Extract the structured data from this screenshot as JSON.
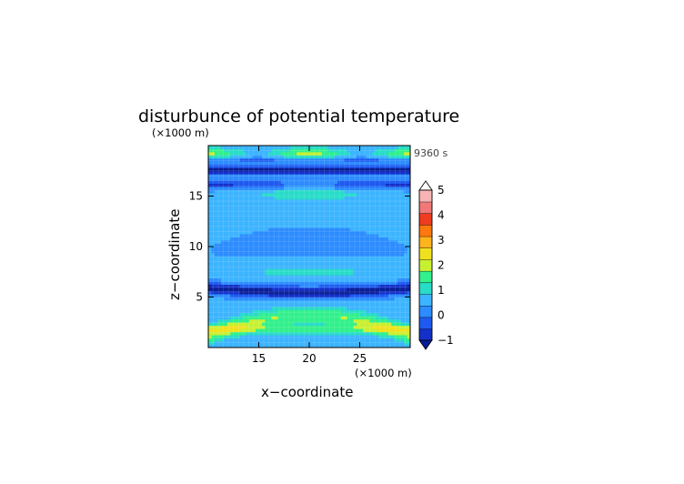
{
  "chart_data": {
    "type": "heatmap",
    "title": "disturbunce of potential temperature",
    "time_label": "9360 s",
    "xlabel": "x−coordinate",
    "ylabel": "z−coordinate",
    "x_unit": "(×1000 m)",
    "y_unit": "(×1000 m)",
    "xlim": [
      10,
      30
    ],
    "ylim": [
      0,
      20
    ],
    "x_ticks": [
      15,
      20,
      25
    ],
    "y_ticks": [
      5,
      10,
      15
    ],
    "grid": true,
    "colorbar": {
      "levels": [
        -1,
        -0.5,
        0,
        0.5,
        1,
        1.5,
        2,
        2.5,
        3,
        3.5,
        4,
        4.5,
        5
      ],
      "labels": [
        "−1",
        "0",
        "1",
        "2",
        "3",
        "4",
        "5"
      ],
      "colors": [
        "#1430c8",
        "#1e5af0",
        "#2d8cff",
        "#3cb4ff",
        "#28dcc8",
        "#32f08c",
        "#c8f032",
        "#f0e11e",
        "#ffb41e",
        "#ff780f",
        "#f03c1e",
        "#f07878",
        "#f8b4b4"
      ],
      "under_color": "#0a1e96",
      "over_color": "#ffffff",
      "extend": "both"
    },
    "description_levels": "horizontally layered field, values mostly between −1 and 2"
  }
}
